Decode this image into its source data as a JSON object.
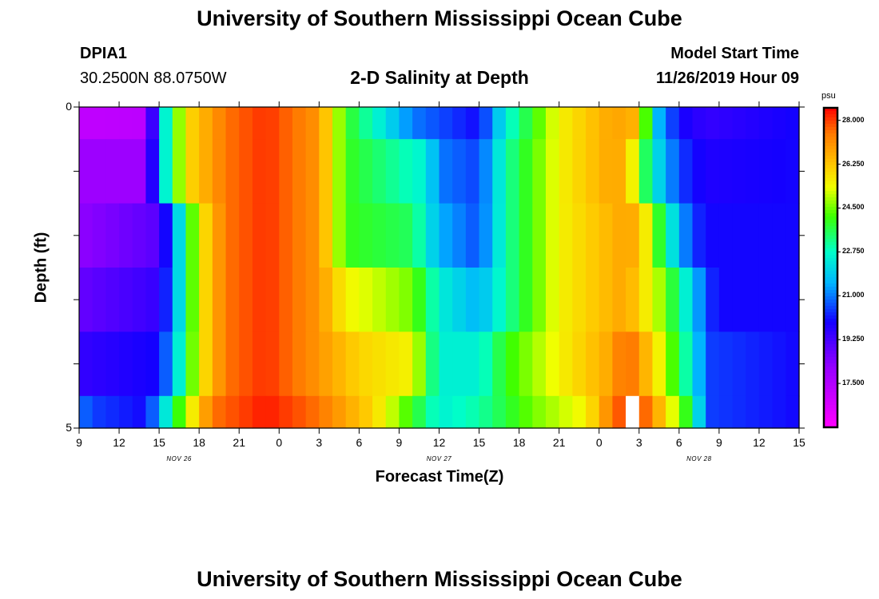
{
  "page": {
    "title_top": "University of Southern Mississippi Ocean Cube",
    "title_bottom": "University of Southern Mississippi Ocean Cube",
    "station_id": "DPIA1",
    "station_coords": "30.2500N 88.0750W",
    "model_start_label": "Model Start Time",
    "model_start_value": "11/26/2019 Hour 09"
  },
  "chart_data": {
    "type": "heatmap",
    "title": "2-D Salinity at Depth",
    "xlabel": "Forecast Time(Z)",
    "ylabel": "Depth (ft)",
    "x_hours_start": "11/26/2019 Hour 09",
    "x_range_hours": [
      0,
      54
    ],
    "y_range": [
      0,
      5
    ],
    "x_tick_labels": [
      "9",
      "12",
      "15",
      "18",
      "21",
      "0",
      "3",
      "6",
      "9",
      "12",
      "15",
      "18",
      "21",
      "0",
      "3",
      "6",
      "9",
      "12",
      "15"
    ],
    "y_tick_labels": [
      "0",
      "5"
    ],
    "date_labels": [
      "NOV 26",
      "NOV 27",
      "NOV 28"
    ],
    "colorbar": {
      "unit": "psu",
      "min": 15.75,
      "max": 28.5,
      "tick_labels": [
        "28.000",
        "26.250",
        "24.500",
        "22.750",
        "21.000",
        "19.250",
        "17.500"
      ],
      "tick_values": [
        28.0,
        26.25,
        24.5,
        22.75,
        21.0,
        19.25,
        17.5
      ]
    },
    "depth_layers": [
      {
        "depth": "0-0.5",
        "keyframes": [
          [
            0,
            17.2
          ],
          [
            5,
            17.3
          ],
          [
            6,
            21.5
          ],
          [
            8,
            25.8
          ],
          [
            11,
            27.5
          ],
          [
            14,
            28.1
          ],
          [
            18,
            27.0
          ],
          [
            20,
            24.0
          ],
          [
            25,
            21.0
          ],
          [
            30,
            20.0
          ],
          [
            32,
            22.5
          ],
          [
            36,
            25.5
          ],
          [
            40,
            26.8
          ],
          [
            42,
            26.5
          ],
          [
            43,
            22.0
          ],
          [
            45,
            20.0
          ],
          [
            47,
            19.5
          ],
          [
            54,
            20.0
          ]
        ]
      },
      {
        "depth": "0.5-1.5",
        "keyframes": [
          [
            0,
            18.0
          ],
          [
            5,
            18.0
          ],
          [
            6,
            21.5
          ],
          [
            8,
            25.8
          ],
          [
            11,
            27.5
          ],
          [
            14,
            28.1
          ],
          [
            18,
            27.0
          ],
          [
            20,
            24.0
          ],
          [
            26,
            22.5
          ],
          [
            27,
            21.0
          ],
          [
            30,
            20.5
          ],
          [
            32,
            23.0
          ],
          [
            36,
            25.5
          ],
          [
            40,
            26.8
          ],
          [
            41,
            26.5
          ],
          [
            43,
            22.5
          ],
          [
            45,
            20.5
          ],
          [
            47,
            19.8
          ],
          [
            54,
            20.0
          ]
        ]
      },
      {
        "depth": "1.5-2.5",
        "keyframes": [
          [
            0,
            18.2
          ],
          [
            6,
            19.0
          ],
          [
            7,
            21.0
          ],
          [
            9,
            25.5
          ],
          [
            11,
            27.5
          ],
          [
            14,
            28.1
          ],
          [
            18,
            27.0
          ],
          [
            20,
            24.0
          ],
          [
            25,
            23.5
          ],
          [
            27,
            21.5
          ],
          [
            30,
            20.6
          ],
          [
            32,
            23.0
          ],
          [
            36,
            25.5
          ],
          [
            41,
            26.8
          ],
          [
            42,
            26.5
          ],
          [
            44,
            23.0
          ],
          [
            45,
            21.5
          ],
          [
            46,
            20.5
          ],
          [
            47,
            20.0
          ],
          [
            54,
            20.0
          ]
        ]
      },
      {
        "depth": "2.5-3.5",
        "keyframes": [
          [
            0,
            18.8
          ],
          [
            6,
            19.5
          ],
          [
            7,
            21.0
          ],
          [
            9,
            25.5
          ],
          [
            11,
            27.5
          ],
          [
            14,
            28.1
          ],
          [
            18,
            27.0
          ],
          [
            20,
            25.5
          ],
          [
            25,
            24.5
          ],
          [
            27,
            22.5
          ],
          [
            30,
            21.5
          ],
          [
            32,
            23.0
          ],
          [
            36,
            25.5
          ],
          [
            41,
            26.8
          ],
          [
            42,
            26.0
          ],
          [
            44,
            24.5
          ],
          [
            45,
            23.0
          ],
          [
            46,
            22.0
          ],
          [
            47,
            20.5
          ],
          [
            48,
            20.0
          ],
          [
            54,
            20.0
          ]
        ]
      },
      {
        "depth": "3.5-4.5",
        "keyframes": [
          [
            0,
            19.5
          ],
          [
            6,
            20.0
          ],
          [
            7,
            21.5
          ],
          [
            9,
            25.5
          ],
          [
            11,
            27.5
          ],
          [
            14,
            28.1
          ],
          [
            18,
            27.0
          ],
          [
            21,
            26.0
          ],
          [
            25,
            25.5
          ],
          [
            27,
            22.5
          ],
          [
            30,
            22.5
          ],
          [
            32,
            24.0
          ],
          [
            36,
            25.5
          ],
          [
            40,
            26.8
          ],
          [
            41,
            27.8
          ],
          [
            42,
            27.0
          ],
          [
            44,
            25.0
          ],
          [
            45,
            23.5
          ],
          [
            46,
            22.5
          ],
          [
            47,
            20.5
          ],
          [
            54,
            20.0
          ]
        ]
      },
      {
        "depth": "4.5-5",
        "keyframes": [
          [
            0,
            21.0
          ],
          [
            1,
            20.5
          ],
          [
            5,
            20.0
          ],
          [
            6,
            21.5
          ],
          [
            8,
            25.0
          ],
          [
            10,
            27.5
          ],
          [
            14,
            28.3
          ],
          [
            18,
            27.5
          ],
          [
            22,
            26.0
          ],
          [
            25,
            24.0
          ],
          [
            27,
            22.5
          ],
          [
            30,
            23.0
          ],
          [
            34,
            24.5
          ],
          [
            38,
            25.5
          ],
          [
            40,
            27.5
          ],
          [
            41,
            28.0
          ],
          [
            42,
            28.2
          ],
          [
            43,
            27.0
          ],
          [
            44,
            26.0
          ],
          [
            45,
            24.5
          ],
          [
            46,
            23.5
          ],
          [
            47,
            20.5
          ],
          [
            54,
            20.0
          ]
        ]
      }
    ],
    "missing_cells": [
      [
        41,
        5
      ]
    ]
  }
}
